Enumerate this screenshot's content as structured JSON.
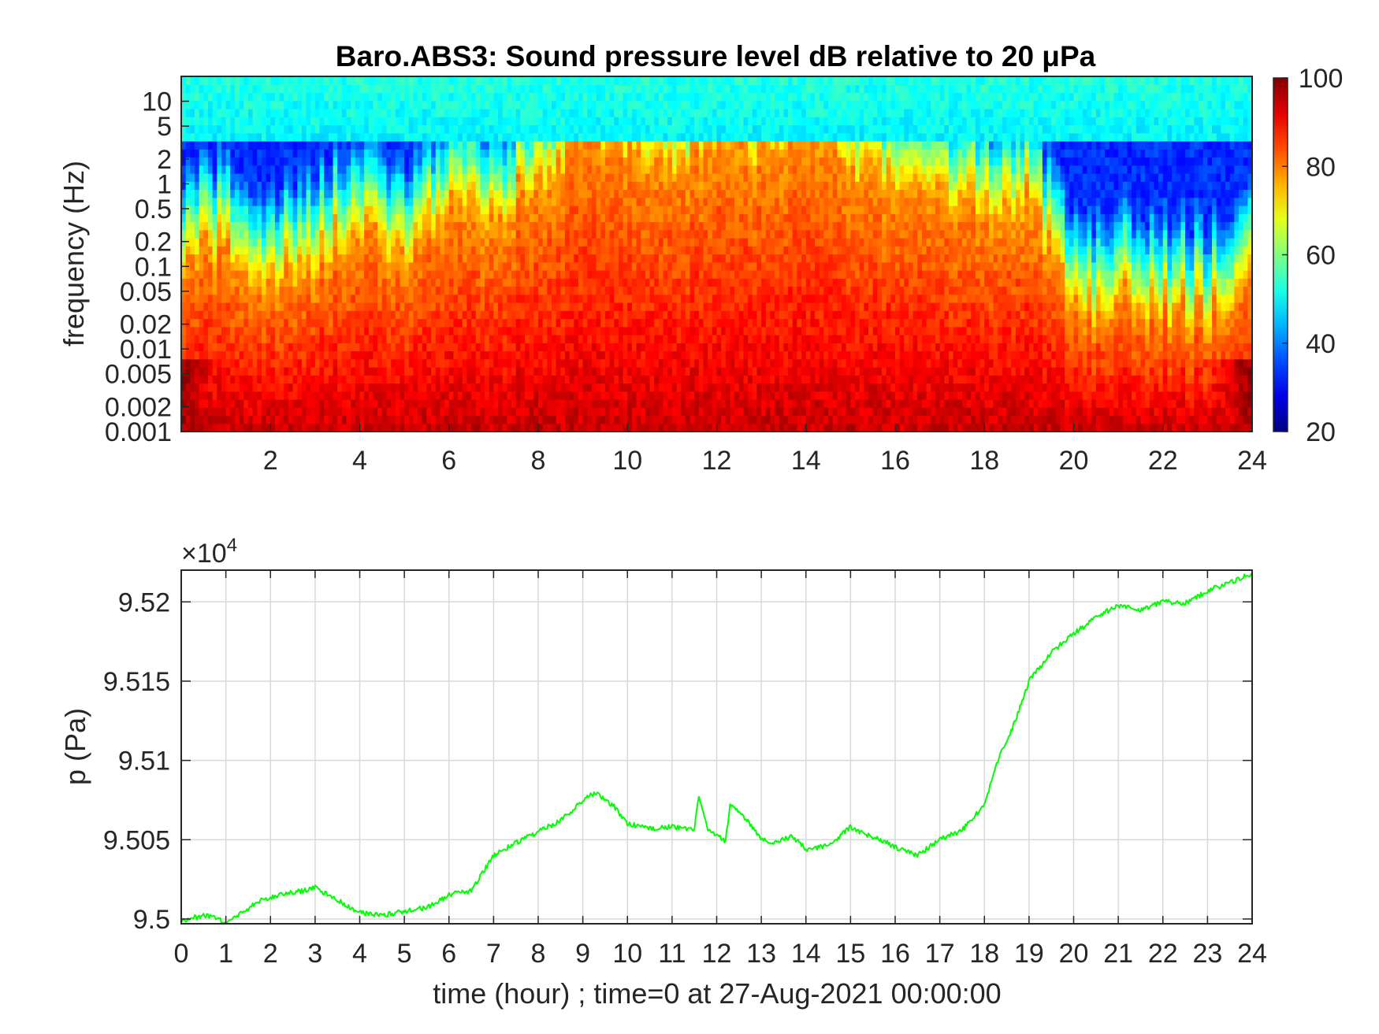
{
  "chart_data": [
    {
      "type": "heatmap",
      "title": "Baro.ABS3: Sound pressure level dB relative to 20 μPa",
      "xlabel": "",
      "ylabel": "frequency (Hz)",
      "x_ticks": [
        "2",
        "4",
        "6",
        "8",
        "10",
        "12",
        "14",
        "16",
        "18",
        "20",
        "22",
        "24"
      ],
      "y_ticks": [
        "10",
        "5",
        "2",
        "1",
        "0.5",
        "0.2",
        "0.1",
        "0.05",
        "0.02",
        "0.01",
        "0.005",
        "0.002",
        "0.001"
      ],
      "xlim": [
        0,
        24
      ],
      "ylim": [
        0.001,
        20
      ],
      "yscale": "log",
      "colorbar": {
        "range": [
          20,
          100
        ],
        "ticks": [
          "100",
          "80",
          "60",
          "40",
          "20"
        ],
        "colormap": "jet"
      },
      "energy_profile": {
        "hour": [
          0,
          1,
          2,
          3,
          4,
          5,
          6,
          7,
          8,
          9,
          10,
          11,
          12,
          13,
          14,
          15,
          16,
          17,
          18,
          19,
          20,
          21,
          22,
          23,
          24
        ],
        "high_freq_reach_log10_hz": [
          -1.0,
          -0.8,
          -1.3,
          -0.9,
          -0.6,
          -0.9,
          -0.3,
          -0.4,
          0.0,
          0.6,
          0.4,
          0.2,
          0.5,
          0.4,
          0.7,
          0.2,
          0.0,
          -0.2,
          -0.3,
          -0.2,
          -1.6,
          -1.4,
          -1.5,
          -1.6,
          -1.3
        ]
      }
    },
    {
      "type": "line",
      "title": "",
      "xlabel": "time (hour) ; time=0 at 27-Aug-2021 00:00:00",
      "ylabel": "p (Pa)",
      "exponent_label": "×10",
      "exponent_power": "4",
      "x_ticks": [
        "0",
        "1",
        "2",
        "3",
        "4",
        "5",
        "6",
        "7",
        "8",
        "9",
        "10",
        "11",
        "12",
        "13",
        "14",
        "15",
        "16",
        "17",
        "18",
        "19",
        "20",
        "21",
        "22",
        "23",
        "24"
      ],
      "y_ticks": [
        "9.52",
        "9.515",
        "9.51",
        "9.505",
        "9.5"
      ],
      "xlim": [
        0,
        24
      ],
      "ylim": [
        94997,
        95220
      ],
      "grid": true,
      "color": "#00ff00",
      "x": [
        0,
        0.5,
        0.8,
        1,
        1.4,
        1.8,
        2.3,
        2.8,
        3,
        3.5,
        4,
        4.5,
        5,
        5.5,
        6,
        6.5,
        7,
        7.5,
        8,
        8.5,
        9,
        9.3,
        9.7,
        10,
        10.5,
        11,
        11.5,
        11.6,
        11.8,
        12.2,
        12.3,
        12.5,
        13,
        13.3,
        13.7,
        14,
        14.5,
        15,
        15.3,
        15.8,
        16.2,
        16.5,
        17,
        17.5,
        18,
        18.3,
        18.7,
        19,
        19.5,
        20,
        20.5,
        21,
        21.5,
        22,
        22.5,
        23,
        23.5,
        23.8,
        24
      ],
      "y": [
        94999,
        95002,
        95001,
        94996,
        95005,
        95012,
        95016,
        95018,
        95020,
        95012,
        95004,
        95002,
        95005,
        95007,
        95015,
        95018,
        95040,
        95048,
        95055,
        95062,
        95075,
        95080,
        95071,
        95060,
        95057,
        95058,
        95057,
        95078,
        95056,
        95049,
        95073,
        95068,
        95051,
        95048,
        95052,
        95044,
        95046,
        95058,
        95054,
        95048,
        95043,
        95040,
        95050,
        95056,
        95072,
        95100,
        95125,
        95150,
        95168,
        95180,
        95190,
        95198,
        95195,
        95200,
        95199,
        95207,
        95212,
        95216,
        95216
      ]
    }
  ]
}
